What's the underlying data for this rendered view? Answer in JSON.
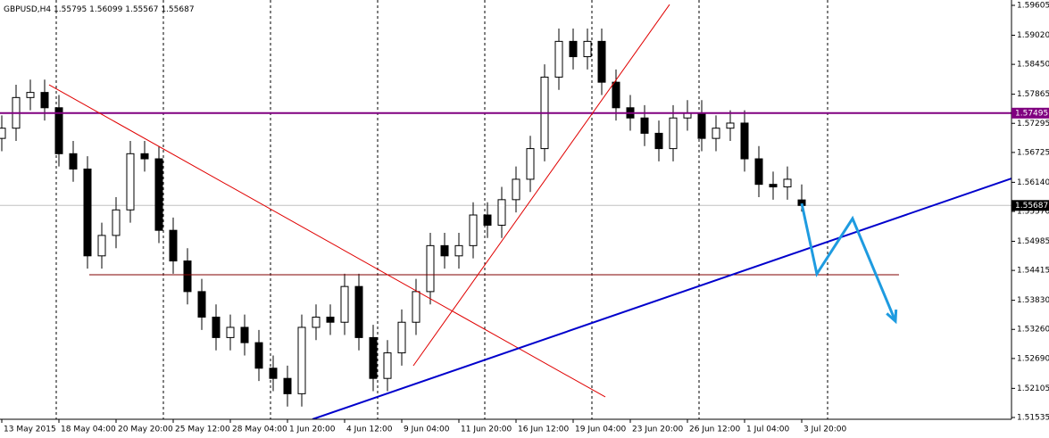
{
  "chart_data": {
    "type": "candlestick",
    "title": "GBPUSD,H4",
    "categories": [
      "13 May 2015",
      null,
      null,
      null,
      "18 May 04:00",
      null,
      null,
      null,
      "20 May 20:00",
      null,
      null,
      null,
      "25 May 12:00",
      null,
      null,
      null,
      "28 May 04:00",
      null,
      null,
      null,
      "1 Jun 20:00",
      null,
      null,
      null,
      "4 Jun 12:00",
      null,
      null,
      null,
      "9 Jun 04:00",
      null,
      null,
      null,
      "11 Jun 20:00",
      null,
      null,
      null,
      "16 Jun 12:00",
      null,
      null,
      null,
      "19 Jun 04:00",
      null,
      null,
      null,
      "23 Jun 20:00",
      null,
      null,
      null,
      "26 Jun 12:00",
      null,
      null,
      null,
      "1 Jul 04:00",
      null,
      null,
      null,
      "3 Jul 20:00"
    ],
    "open": [
      1.57,
      1.572,
      1.578,
      1.579,
      1.576,
      1.567,
      1.564,
      1.547,
      1.551,
      1.556,
      1.567,
      1.566,
      1.552,
      1.546,
      1.54,
      1.535,
      1.531,
      1.533,
      1.53,
      1.525,
      1.523,
      1.52,
      1.533,
      1.535,
      1.534,
      1.541,
      1.531,
      1.523,
      1.528,
      1.534,
      1.54,
      1.549,
      1.547,
      1.549,
      1.555,
      1.553,
      1.558,
      1.562,
      1.568,
      1.582,
      1.589,
      1.586,
      1.589,
      1.581,
      1.576,
      1.574,
      1.571,
      1.568,
      1.574,
      1.575,
      1.57,
      1.572,
      1.573,
      1.566,
      1.561,
      1.5605,
      1.55795
    ],
    "high": [
      1.5745,
      1.5805,
      1.5815,
      1.5815,
      1.5785,
      1.5695,
      1.5665,
      1.5535,
      1.5585,
      1.5695,
      1.5695,
      1.5685,
      1.5545,
      1.5485,
      1.5425,
      1.5375,
      1.5355,
      1.5355,
      1.5325,
      1.5275,
      1.5255,
      1.5355,
      1.5375,
      1.5375,
      1.5435,
      1.5435,
      1.5335,
      1.5305,
      1.5365,
      1.5425,
      1.5515,
      1.5515,
      1.5515,
      1.5575,
      1.5575,
      1.5605,
      1.5645,
      1.5705,
      1.5845,
      1.5915,
      1.5915,
      1.5915,
      1.5915,
      1.5835,
      1.5785,
      1.5765,
      1.5735,
      1.5765,
      1.5775,
      1.5775,
      1.5745,
      1.5755,
      1.5755,
      1.5685,
      1.5635,
      1.5645,
      1.56099
    ],
    "low": [
      1.5675,
      1.5695,
      1.5755,
      1.5735,
      1.5645,
      1.5615,
      1.5445,
      1.5445,
      1.5485,
      1.5535,
      1.5635,
      1.5495,
      1.5435,
      1.5375,
      1.5325,
      1.5285,
      1.5285,
      1.5275,
      1.5225,
      1.5205,
      1.5175,
      1.5175,
      1.5305,
      1.5315,
      1.5315,
      1.5285,
      1.5205,
      1.5205,
      1.5255,
      1.5315,
      1.5375,
      1.5445,
      1.5445,
      1.5465,
      1.5505,
      1.5505,
      1.5555,
      1.5595,
      1.5655,
      1.5795,
      1.5835,
      1.5835,
      1.5785,
      1.5735,
      1.5715,
      1.5685,
      1.5655,
      1.5655,
      1.5715,
      1.5675,
      1.5675,
      1.5695,
      1.5635,
      1.5585,
      1.558,
      1.558,
      1.55567
    ],
    "close": [
      1.572,
      1.578,
      1.579,
      1.576,
      1.567,
      1.564,
      1.547,
      1.551,
      1.556,
      1.567,
      1.566,
      1.552,
      1.546,
      1.54,
      1.535,
      1.531,
      1.533,
      1.53,
      1.525,
      1.523,
      1.52,
      1.533,
      1.535,
      1.534,
      1.541,
      1.531,
      1.523,
      1.528,
      1.534,
      1.54,
      1.549,
      1.547,
      1.549,
      1.555,
      1.553,
      1.558,
      1.562,
      1.568,
      1.582,
      1.589,
      1.586,
      1.589,
      1.581,
      1.576,
      1.574,
      1.571,
      1.568,
      1.574,
      1.575,
      1.57,
      1.572,
      1.573,
      1.566,
      1.561,
      1.5605,
      1.562,
      1.55687
    ],
    "ylim": [
      1.515,
      1.5971
    ],
    "yticks": [
      1.59605,
      {
        "value": 1.5902,
        "label": "1.59020"
      },
      {
        "value": 1.5845,
        "label": "1.58450"
      },
      1.57865,
      1.57295,
      1.56725,
      {
        "value": 1.5614,
        "label": "1.56140"
      },
      {
        "value": 1.5557,
        "label": "1.55570"
      },
      1.54985,
      1.54415,
      {
        "value": 1.5383,
        "label": "1.53830"
      },
      {
        "value": 1.5326,
        "label": "1.53260"
      },
      {
        "value": 1.5269,
        "label": "1.52690"
      },
      1.52105,
      1.51535
    ],
    "objects": [
      {
        "kind": "hline",
        "value": 1.57495,
        "color": "#800080"
      },
      {
        "kind": "segment",
        "x": [
          6.125,
          62.81
        ],
        "y": [
          1.5433,
          1.5433
        ],
        "color": "#800000"
      },
      {
        "kind": "segment",
        "x": [
          3.31,
          42.25
        ],
        "y": [
          1.5805,
          1.51937
        ],
        "color": "#e00000"
      },
      {
        "kind": "segment",
        "x": [
          28.81,
          46.75
        ],
        "y": [
          1.52548,
          1.59622
        ],
        "color": "#e00000"
      },
      {
        "kind": "segment",
        "x": [
          21.75,
          70.69
        ],
        "y": [
          1.515,
          1.56216
        ],
        "color": "#0000cc"
      },
      {
        "kind": "arrow",
        "x": [
          56,
          57.06,
          59.56,
          62.56
        ],
        "y": [
          1.55727,
          1.54347,
          1.5543,
          1.53421
        ],
        "color": "#1e9be0"
      }
    ]
  }
}
